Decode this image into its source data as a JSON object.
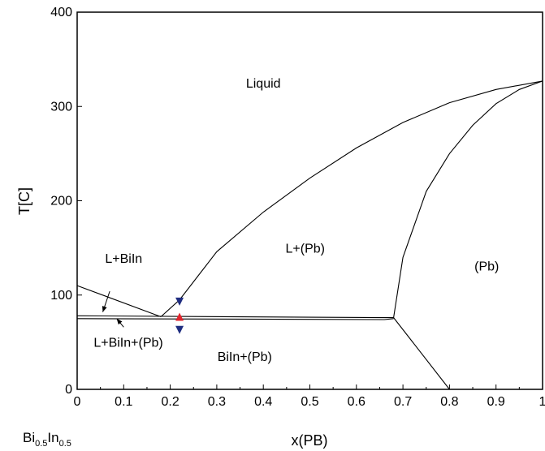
{
  "chart_data": {
    "type": "line",
    "title": "",
    "xlabel": "x(PB)",
    "ylabel": "T[C]",
    "xlim": [
      0,
      1
    ],
    "ylim": [
      0,
      400
    ],
    "x_ticks": [
      "0",
      "0.1",
      "0.2",
      "0.3",
      "0.4",
      "0.5",
      "0.6",
      "0.7",
      "0.8",
      "0.9",
      "1"
    ],
    "y_ticks": [
      "0",
      "100",
      "200",
      "300",
      "400"
    ],
    "grid": false,
    "corner_label": {
      "base1": "Bi",
      "sub1": "0.5",
      "base2": "In",
      "sub2": "0.5"
    },
    "lines": [
      {
        "x": [
          0,
          0.18
        ],
        "y": [
          110,
          77
        ]
      },
      {
        "x": [
          0.18,
          0.22,
          0.3,
          0.4,
          0.5,
          0.6,
          0.7,
          0.8,
          0.9,
          1.0
        ],
        "y": [
          77,
          95,
          146,
          188,
          224,
          256,
          283,
          304,
          318,
          327
        ]
      },
      {
        "x": [
          0,
          0.66,
          0.68
        ],
        "y": [
          78,
          76,
          76
        ]
      },
      {
        "x": [
          0,
          0.66,
          0.68
        ],
        "y": [
          75,
          74,
          75
        ]
      },
      {
        "x": [
          0.68,
          0.7,
          0.75,
          0.8,
          0.85,
          0.9,
          0.95,
          1.0
        ],
        "y": [
          76,
          140,
          210,
          250,
          280,
          303,
          318,
          327
        ]
      },
      {
        "x": [
          0.68,
          0.8
        ],
        "y": [
          76,
          0
        ]
      }
    ],
    "markers": [
      {
        "x": 0.22,
        "y": 93,
        "shape": "triangle-down",
        "color": "#1f2d80"
      },
      {
        "x": 0.22,
        "y": 77,
        "shape": "triangle-up",
        "color": "#e0242c"
      },
      {
        "x": 0.22,
        "y": 63,
        "shape": "triangle-down",
        "color": "#1f2d80"
      }
    ],
    "annotations": [
      {
        "text": "Liquid",
        "x": 0.4,
        "y": 320
      },
      {
        "text": "L+(Pb)",
        "x": 0.49,
        "y": 145
      },
      {
        "text": "(Pb)",
        "x": 0.88,
        "y": 126
      },
      {
        "text": "L+BiIn",
        "x": 0.1,
        "y": 134
      },
      {
        "text": "L+BiIn+(Pb)",
        "x": 0.11,
        "y": 45
      },
      {
        "text": "BiIn+(Pb)",
        "x": 0.36,
        "y": 30
      }
    ],
    "arrows": [
      {
        "from": [
          0.07,
          104
        ],
        "to": [
          0.055,
          82
        ]
      },
      {
        "from": [
          0.1,
          66
        ],
        "to": [
          0.085,
          75
        ]
      }
    ]
  }
}
